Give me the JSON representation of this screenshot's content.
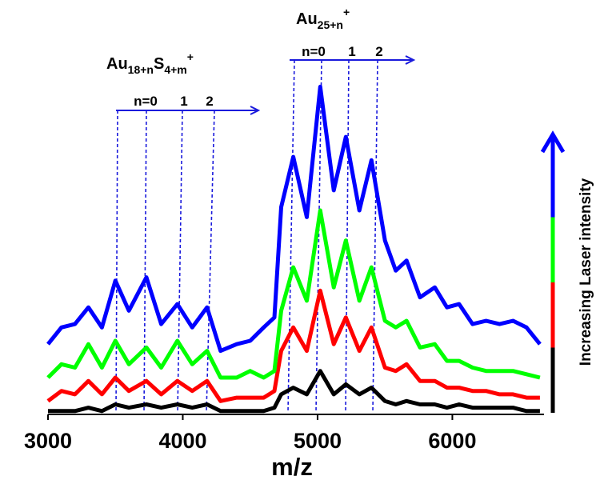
{
  "chart_data": {
    "type": "line",
    "x_label": "m/z",
    "side_label": "Increasing Laser intensity",
    "annotations": [
      {
        "parts": [
          "Au",
          "18+n",
          "S",
          "4+m",
          "+"
        ],
        "labels": [
          "n=0",
          "1",
          "2"
        ]
      },
      {
        "parts": [
          "Au",
          "25+n",
          "+"
        ],
        "labels": [
          "n=0",
          "1",
          "2"
        ]
      }
    ],
    "x": [
      3000,
      3100,
      3200,
      3300,
      3400,
      3500,
      3600,
      3730,
      3840,
      3960,
      4070,
      4180,
      4280,
      4400,
      4500,
      4600,
      4680,
      4730,
      4820,
      4920,
      5020,
      5120,
      5210,
      5310,
      5400,
      5500,
      5580,
      5660,
      5760,
      5870,
      5960,
      6050,
      6150,
      6250,
      6350,
      6450,
      6550,
      6650
    ],
    "series": [
      {
        "color": "#000000",
        "values": [
          1,
          1,
          1,
          2,
          1,
          3,
          2,
          3,
          2,
          3,
          2,
          3,
          1,
          1,
          1,
          1,
          2,
          6,
          8,
          6,
          13,
          6,
          9,
          6,
          8,
          4,
          3,
          4,
          3,
          3,
          2,
          3,
          2,
          2,
          2,
          2,
          1,
          1
        ]
      },
      {
        "color": "#ff0000",
        "values": [
          4,
          7,
          6,
          10,
          6,
          11,
          7,
          10,
          6,
          10,
          7,
          10,
          4,
          5,
          5,
          5,
          7,
          19,
          26,
          19,
          37,
          21,
          29,
          19,
          26,
          14,
          13,
          15,
          10,
          10,
          8,
          8,
          7,
          7,
          6,
          6,
          5,
          5
        ]
      },
      {
        "color": "#00ff00",
        "values": [
          11,
          15,
          14,
          21,
          14,
          22,
          15,
          20,
          14,
          22,
          15,
          19,
          11,
          11,
          13,
          11,
          13,
          31,
          44,
          34,
          61,
          38,
          52,
          34,
          44,
          28,
          26,
          28,
          20,
          21,
          16,
          16,
          14,
          13,
          13,
          13,
          12,
          11
        ]
      },
      {
        "color": "#0000ff",
        "values": [
          21,
          26,
          27,
          32,
          26,
          40,
          31,
          41,
          27,
          33,
          26,
          32,
          19,
          21,
          22,
          26,
          29,
          62,
          77,
          59,
          98,
          67,
          83,
          61,
          76,
          52,
          43,
          46,
          35,
          38,
          32,
          33,
          27,
          28,
          27,
          28,
          26,
          21
        ]
      }
    ],
    "xlim": [
      3000,
      6680
    ],
    "xticks": [
      3000,
      4000,
      5000,
      6000
    ],
    "ylim": [
      0,
      100
    ]
  }
}
